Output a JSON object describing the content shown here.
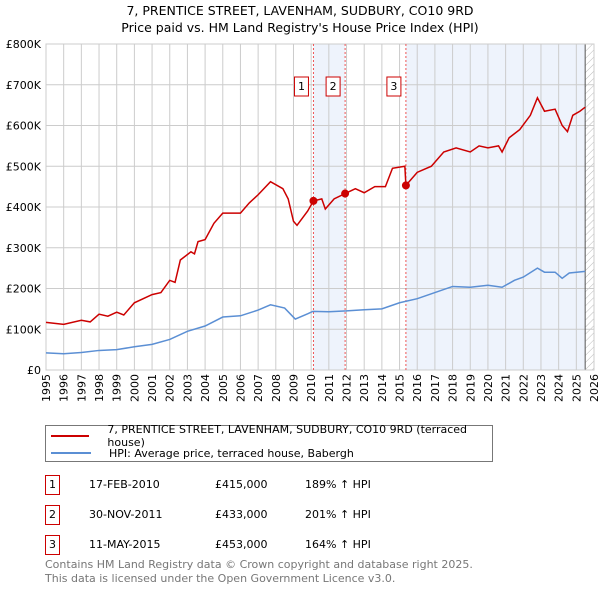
{
  "title": "7, PRENTICE STREET, LAVENHAM, SUDBURY, CO10 9RD",
  "subtitle": "Price paid vs. HM Land Registry's House Price Index (HPI)",
  "chart_data": {
    "type": "line",
    "xlim": [
      1995,
      2026
    ],
    "ylim": [
      0,
      800000
    ],
    "x_ticks": [
      "1995",
      "1996",
      "1997",
      "1998",
      "1999",
      "2000",
      "2001",
      "2002",
      "2003",
      "2004",
      "2005",
      "2006",
      "2007",
      "2008",
      "2009",
      "2010",
      "2011",
      "2012",
      "2013",
      "2014",
      "2015",
      "2016",
      "2017",
      "2018",
      "2019",
      "2020",
      "2021",
      "2022",
      "2023",
      "2024",
      "2025",
      "2026"
    ],
    "y_ticks": [
      {
        "v": 0,
        "label": "£0"
      },
      {
        "v": 100000,
        "label": "£100K"
      },
      {
        "v": 200000,
        "label": "£200K"
      },
      {
        "v": 300000,
        "label": "£300K"
      },
      {
        "v": 400000,
        "label": "£400K"
      },
      {
        "v": 500000,
        "label": "£500K"
      },
      {
        "v": 600000,
        "label": "£600K"
      },
      {
        "v": 700000,
        "label": "£700K"
      },
      {
        "v": 800000,
        "label": "£800K"
      }
    ],
    "grid": true,
    "series": [
      {
        "name": "7, PRENTICE STREET, LAVENHAM, SUDBURY, CO10 9RD (terraced house)",
        "color": "#cc0000",
        "points": [
          [
            1995,
            117000
          ],
          [
            1996,
            112000
          ],
          [
            1997,
            122000
          ],
          [
            1997.5,
            118000
          ],
          [
            1998,
            137000
          ],
          [
            1998.5,
            132000
          ],
          [
            1999,
            142000
          ],
          [
            1999.4,
            135000
          ],
          [
            2000,
            165000
          ],
          [
            2001,
            185000
          ],
          [
            2001.5,
            190000
          ],
          [
            2002,
            220000
          ],
          [
            2002.3,
            215000
          ],
          [
            2002.6,
            270000
          ],
          [
            2003.2,
            290000
          ],
          [
            2003.4,
            285000
          ],
          [
            2003.6,
            315000
          ],
          [
            2004,
            320000
          ],
          [
            2004.5,
            360000
          ],
          [
            2005,
            385000
          ],
          [
            2006,
            385000
          ],
          [
            2006.5,
            410000
          ],
          [
            2007,
            430000
          ],
          [
            2007.7,
            462000
          ],
          [
            2008.4,
            445000
          ],
          [
            2008.7,
            420000
          ],
          [
            2009,
            365000
          ],
          [
            2009.2,
            355000
          ],
          [
            2009.8,
            390000
          ],
          [
            2010.13,
            415000
          ],
          [
            2010.6,
            420000
          ],
          [
            2010.8,
            395000
          ],
          [
            2011.3,
            420000
          ],
          [
            2011.92,
            433000
          ],
          [
            2012.5,
            445000
          ],
          [
            2013,
            435000
          ],
          [
            2013.6,
            450000
          ],
          [
            2014.2,
            450000
          ],
          [
            2014.6,
            495000
          ],
          [
            2015.3,
            500000
          ],
          [
            2015.36,
            453000
          ],
          [
            2016,
            485000
          ],
          [
            2016.8,
            500000
          ],
          [
            2017.5,
            535000
          ],
          [
            2018.2,
            545000
          ],
          [
            2019,
            535000
          ],
          [
            2019.5,
            550000
          ],
          [
            2020,
            545000
          ],
          [
            2020.6,
            550000
          ],
          [
            2020.8,
            535000
          ],
          [
            2021.2,
            570000
          ],
          [
            2021.8,
            590000
          ],
          [
            2022.4,
            625000
          ],
          [
            2022.8,
            668000
          ],
          [
            2023.2,
            635000
          ],
          [
            2023.8,
            640000
          ],
          [
            2024.2,
            600000
          ],
          [
            2024.5,
            585000
          ],
          [
            2024.8,
            625000
          ],
          [
            2025.2,
            635000
          ],
          [
            2025.5,
            645000
          ]
        ]
      },
      {
        "name": "HPI: Average price, terraced house, Babergh",
        "color": "#5b8fd4",
        "points": [
          [
            1995,
            42000
          ],
          [
            1996,
            40000
          ],
          [
            1997,
            43000
          ],
          [
            1998,
            48000
          ],
          [
            1999,
            50000
          ],
          [
            2000,
            57000
          ],
          [
            2001,
            63000
          ],
          [
            2002,
            75000
          ],
          [
            2003,
            95000
          ],
          [
            2004,
            108000
          ],
          [
            2005,
            130000
          ],
          [
            2006,
            133000
          ],
          [
            2007,
            147000
          ],
          [
            2007.7,
            160000
          ],
          [
            2008.5,
            152000
          ],
          [
            2009.1,
            125000
          ],
          [
            2009.8,
            138000
          ],
          [
            2010.1,
            144000
          ],
          [
            2011,
            143000
          ],
          [
            2012,
            145000
          ],
          [
            2013,
            148000
          ],
          [
            2014,
            150000
          ],
          [
            2015,
            165000
          ],
          [
            2016,
            175000
          ],
          [
            2017,
            190000
          ],
          [
            2018,
            205000
          ],
          [
            2019,
            203000
          ],
          [
            2020,
            208000
          ],
          [
            2020.8,
            203000
          ],
          [
            2021.5,
            220000
          ],
          [
            2022,
            228000
          ],
          [
            2022.8,
            250000
          ],
          [
            2023.2,
            240000
          ],
          [
            2023.8,
            240000
          ],
          [
            2024.2,
            225000
          ],
          [
            2024.6,
            238000
          ],
          [
            2025.5,
            242000
          ]
        ]
      }
    ],
    "sales": [
      {
        "label": "1",
        "x": 2010.13,
        "y": 415000
      },
      {
        "label": "2",
        "x": 2011.92,
        "y": 433000
      },
      {
        "label": "3",
        "x": 2015.36,
        "y": 453000
      }
    ],
    "shaded": [
      [
        2010.13,
        2011.92
      ],
      [
        2015.36,
        2025.5
      ]
    ],
    "hatched_from": 2025.5
  },
  "legend": [
    "7, PRENTICE STREET, LAVENHAM, SUDBURY, CO10 9RD (terraced house)",
    "HPI: Average price, terraced house, Babergh"
  ],
  "transactions": [
    {
      "num": "1",
      "date": "17-FEB-2010",
      "price": "£415,000",
      "hpi": "189% ↑ HPI"
    },
    {
      "num": "2",
      "date": "30-NOV-2011",
      "price": "£433,000",
      "hpi": "201% ↑ HPI"
    },
    {
      "num": "3",
      "date": "11-MAY-2015",
      "price": "£453,000",
      "hpi": "164% ↑ HPI"
    }
  ],
  "footer": [
    "Contains HM Land Registry data © Crown copyright and database right 2025.",
    "This data is licensed under the Open Government Licence v3.0."
  ]
}
